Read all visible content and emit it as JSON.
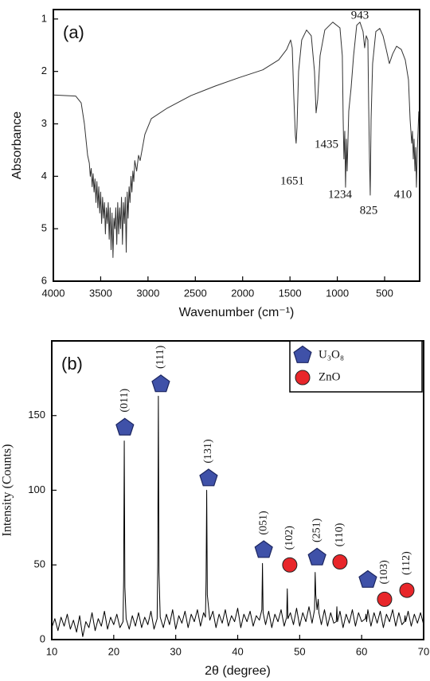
{
  "chart_data": [
    {
      "type": "line",
      "panel_label": "(a)",
      "xlabel": "Wavenumber (cm⁻¹)",
      "ylabel": "Absorbance",
      "color": "#333333",
      "xlim": [
        4000,
        130
      ],
      "ylim": [
        6,
        0.82
      ],
      "xticks": [
        4000,
        3500,
        3000,
        2500,
        2000,
        1500,
        1000,
        500
      ],
      "yticks": [
        1,
        2,
        3,
        4,
        5,
        6
      ],
      "annotations": [
        "1651",
        "1435",
        "943",
        "1234",
        "825",
        "410"
      ],
      "x": [
        4000,
        3764,
        3706,
        3672,
        3638,
        3620,
        3610,
        3600,
        3590,
        3580,
        3570,
        3560,
        3550,
        3540,
        3530,
        3520,
        3510,
        3500,
        3490,
        3480,
        3470,
        3460,
        3450,
        3440,
        3430,
        3420,
        3410,
        3400,
        3390,
        3380,
        3370,
        3360,
        3350,
        3340,
        3330,
        3320,
        3310,
        3300,
        3290,
        3280,
        3270,
        3260,
        3250,
        3240,
        3230,
        3220,
        3210,
        3200,
        3190,
        3180,
        3170,
        3160,
        3150,
        3140,
        3120,
        3100,
        3083,
        3033,
        2965,
        2797,
        2545,
        2292,
        2040,
        1787,
        1619,
        1535,
        1493,
        1476,
        1460,
        1443,
        1435,
        1426,
        1409,
        1376,
        1325,
        1275,
        1241,
        1224,
        1207,
        1182,
        1132,
        1048,
        972,
        947,
        938,
        930,
        921,
        913,
        904,
        896,
        879,
        854,
        828,
        795,
        761,
        728,
        711,
        694,
        677,
        669,
        660,
        652,
        643,
        627,
        593,
        551,
        517,
        483,
        450,
        416,
        374,
        324,
        282,
        248,
        231,
        214,
        206,
        197,
        189,
        180,
        172,
        164,
        155,
        139
      ],
      "values": [
        2.45,
        2.47,
        2.6,
        3.0,
        3.6,
        3.75,
        4.0,
        3.85,
        4.2,
        3.95,
        4.3,
        4.05,
        4.5,
        4.1,
        4.6,
        4.2,
        4.7,
        4.3,
        4.9,
        4.4,
        4.8,
        4.5,
        5.1,
        4.6,
        4.9,
        4.5,
        5.2,
        4.6,
        5.4,
        4.7,
        5.55,
        4.8,
        5.0,
        4.6,
        5.3,
        4.5,
        5.1,
        4.6,
        5.0,
        4.4,
        5.3,
        4.5,
        4.9,
        4.4,
        5.45,
        4.3,
        4.8,
        4.2,
        4.5,
        4.0,
        4.3,
        3.9,
        4.1,
        3.7,
        3.9,
        3.6,
        3.7,
        3.2,
        2.9,
        2.7,
        2.46,
        2.28,
        2.12,
        1.97,
        1.78,
        1.58,
        1.4,
        1.55,
        2.46,
        3.22,
        3.37,
        3.07,
        2.0,
        1.4,
        1.21,
        1.32,
        2.0,
        2.79,
        2.53,
        1.7,
        1.21,
        1.06,
        1.17,
        1.7,
        2.91,
        3.67,
        3.14,
        4.21,
        3.29,
        3.9,
        2.76,
        2.31,
        1.7,
        1.12,
        1.06,
        1.24,
        1.55,
        1.32,
        1.4,
        2.61,
        3.67,
        4.36,
        2.91,
        1.85,
        1.24,
        1.18,
        1.32,
        1.58,
        1.85,
        1.67,
        1.52,
        1.58,
        1.78,
        2.16,
        2.91,
        3.37,
        3.14,
        3.67,
        3.29,
        3.9,
        3.45,
        4.21,
        3.52,
        2.76
      ]
    },
    {
      "type": "line",
      "panel_label": "(b)",
      "xlabel": "2θ (degree)",
      "ylabel": "Intensity (Counts)",
      "color": "#000000",
      "xlim": [
        10,
        70
      ],
      "ylim": [
        0,
        200
      ],
      "xticks": [
        10,
        20,
        30,
        40,
        50,
        60,
        70
      ],
      "yticks": [
        0,
        50,
        100,
        150
      ],
      "legend": "upper right",
      "x": [
        10,
        10.5,
        11,
        11.5,
        12,
        12.5,
        13,
        13.5,
        14,
        14.5,
        15,
        15.5,
        16,
        16.5,
        17,
        17.5,
        18,
        18.5,
        19,
        19.5,
        20,
        20.5,
        21,
        21.5,
        21.6,
        21.7,
        21.8,
        22,
        22.5,
        23,
        23.5,
        24,
        24.5,
        25,
        25.5,
        26,
        26.5,
        27,
        27.1,
        27.2,
        27.3,
        27.5,
        28,
        28.5,
        29,
        29.5,
        30,
        30.5,
        31,
        31.5,
        32,
        32.5,
        33,
        33.5,
        34,
        34.5,
        34.8,
        34.9,
        35,
        35.1,
        35.5,
        36,
        36.5,
        37,
        37.5,
        38,
        38.5,
        39,
        39.5,
        40,
        40.5,
        41,
        41.5,
        42,
        42.5,
        43,
        43.5,
        43.9,
        44,
        44.1,
        44.5,
        45,
        45.5,
        46,
        46.5,
        47,
        47.5,
        47.9,
        48,
        48.1,
        48.5,
        49,
        49.5,
        50,
        50.5,
        51,
        51.5,
        52,
        52.4,
        52.5,
        52.6,
        52.8,
        53,
        53.1,
        53.5,
        54,
        54.5,
        55,
        55.5,
        55.9,
        56,
        56.1,
        56.5,
        57,
        57.5,
        58,
        58.5,
        59,
        59.5,
        60,
        60.6,
        60.7,
        60.8,
        61,
        61.5,
        62,
        62.5,
        63,
        63.5,
        64,
        64.5,
        65,
        65.5,
        66,
        66.5,
        66.9,
        67,
        67.1,
        67.5,
        68,
        68.5,
        69,
        69.5,
        70
      ],
      "values": [
        8,
        14,
        6,
        15,
        9,
        17,
        7,
        13,
        5,
        16,
        2,
        12,
        8,
        18,
        6,
        14,
        9,
        19,
        7,
        15,
        10,
        17,
        8,
        12,
        40,
        133,
        35,
        14,
        7,
        16,
        9,
        18,
        8,
        15,
        10,
        19,
        7,
        14,
        50,
        163,
        45,
        15,
        8,
        17,
        10,
        20,
        7,
        16,
        11,
        19,
        8,
        17,
        12,
        20,
        9,
        18,
        15,
        40,
        100,
        30,
        13,
        19,
        8,
        17,
        11,
        20,
        9,
        16,
        12,
        21,
        8,
        17,
        12,
        19,
        9,
        16,
        13,
        20,
        51,
        18,
        10,
        19,
        8,
        17,
        12,
        20,
        9,
        15,
        34,
        14,
        18,
        10,
        21,
        9,
        18,
        12,
        22,
        11,
        20,
        45,
        30,
        20,
        27,
        18,
        10,
        20,
        9,
        18,
        11,
        12,
        22,
        12,
        19,
        8,
        17,
        11,
        20,
        9,
        18,
        12,
        14,
        17,
        12,
        20,
        9,
        18,
        11,
        19,
        8,
        17,
        12,
        20,
        9,
        18,
        10,
        12,
        16,
        12,
        19,
        9,
        17,
        11,
        18,
        10
      ],
      "markers": [
        {
          "name": "U₃O₈",
          "shape": "pentagon",
          "color": "#3f51a8",
          "x": [
            21.8,
            27.6,
            35.3,
            44.2,
            52.8,
            61.0
          ],
          "values": [
            142,
            171,
            108,
            60,
            55,
            40
          ],
          "labels": [
            "(011)",
            "(111)",
            "(131)",
            "(051)",
            "(251)",
            ""
          ]
        },
        {
          "name": "ZnO",
          "shape": "circle",
          "color": "#e8262a",
          "x": [
            48.4,
            56.5,
            63.7,
            67.3
          ],
          "values": [
            50,
            52,
            27,
            33
          ],
          "labels": [
            "(102)",
            "(110)",
            "(103)",
            "(112)"
          ]
        }
      ]
    }
  ]
}
